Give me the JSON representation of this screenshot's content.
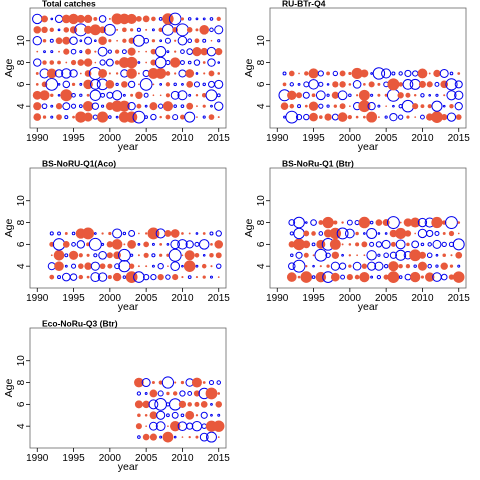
{
  "chart_data": [
    {
      "type": "scatter",
      "title": "Total catches",
      "xlabel": "year",
      "ylabel": "Age",
      "xlim": [
        1989,
        2016
      ],
      "ylim": [
        2,
        13
      ],
      "x_ticks": [
        1990,
        1995,
        2000,
        2005,
        2010,
        2015
      ],
      "y_ticks": [
        4,
        6,
        8,
        10
      ],
      "colors": {
        "positive": "#e8593c",
        "negative": "#0000ee",
        "axis": "#000000",
        "box": "#666666"
      },
      "years": [
        1990,
        2015
      ],
      "ages": [
        3,
        12
      ]
    },
    {
      "type": "scatter",
      "title": "RU-BTr-Q4",
      "xlabel": "year",
      "ylabel": "Age",
      "xlim": [
        1989,
        2016
      ],
      "ylim": [
        2,
        13
      ],
      "x_ticks": [
        1990,
        1995,
        2000,
        2005,
        2010,
        2015
      ],
      "y_ticks": [
        4,
        6,
        8,
        10
      ],
      "colors": {
        "positive": "#e8593c",
        "negative": "#0000ee",
        "axis": "#000000",
        "box": "#666666"
      },
      "years": [
        1991,
        2015
      ],
      "ages": [
        3,
        7
      ]
    },
    {
      "type": "scatter",
      "title": "BS-NoRU-Q1(Aco)",
      "xlabel": "year",
      "ylabel": "Age",
      "xlim": [
        1989,
        2016
      ],
      "ylim": [
        2,
        13
      ],
      "x_ticks": [
        1990,
        1995,
        2000,
        2005,
        2010,
        2015
      ],
      "y_ticks": [
        4,
        6,
        8,
        10
      ],
      "colors": {
        "positive": "#e8593c",
        "negative": "#0000ee",
        "axis": "#000000",
        "box": "#666666"
      },
      "years": [
        1992,
        2015
      ],
      "ages": [
        3,
        7
      ]
    },
    {
      "type": "scatter",
      "title": "BS-NoRu-Q1 (Btr)",
      "xlabel": "year",
      "ylabel": "Age",
      "xlim": [
        1989,
        2016
      ],
      "ylim": [
        2,
        13
      ],
      "x_ticks": [
        1990,
        1995,
        2000,
        2005,
        2010,
        2015
      ],
      "y_ticks": [
        4,
        6,
        8,
        10
      ],
      "colors": {
        "positive": "#e8593c",
        "negative": "#0000ee",
        "axis": "#000000",
        "box": "#666666"
      },
      "years": [
        1992,
        2015
      ],
      "ages": [
        3,
        8
      ]
    },
    {
      "type": "scatter",
      "title": "Eco-NoRu-Q3 (Btr)",
      "xlabel": "year",
      "ylabel": "Age",
      "xlim": [
        1989,
        2016
      ],
      "ylim": [
        2,
        13
      ],
      "x_ticks": [
        1990,
        1995,
        2000,
        2005,
        2010,
        2015
      ],
      "y_ticks": [
        4,
        6,
        8,
        10
      ],
      "colors": {
        "positive": "#e8593c",
        "negative": "#0000ee",
        "axis": "#000000",
        "box": "#666666"
      },
      "years": [
        2004,
        2015
      ],
      "ages": [
        3,
        8
      ]
    }
  ]
}
